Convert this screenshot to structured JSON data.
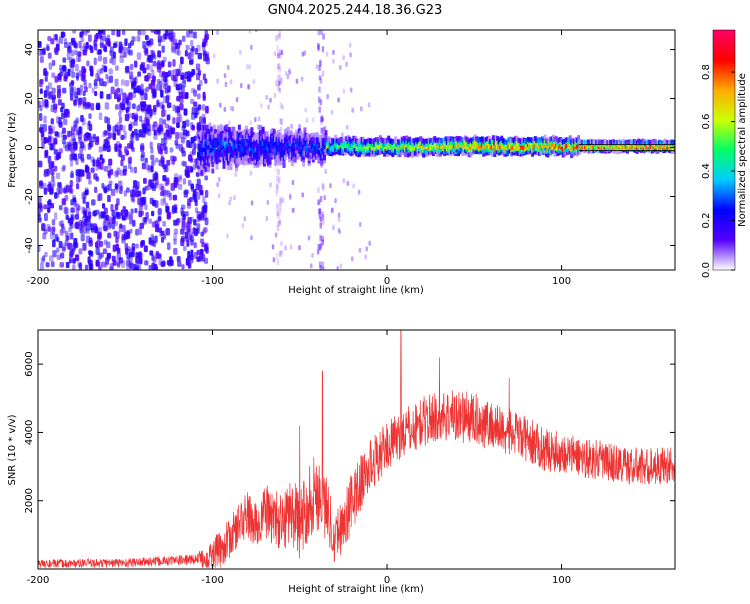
{
  "page": {
    "title": "GN04.2025.244.18.36.G23"
  },
  "chart_data": [
    {
      "type": "heatmap",
      "xlabel": "Height of straight line (km)",
      "ylabel": "Frequency (Hz)",
      "xlim": [
        -200,
        165
      ],
      "ylim": [
        -50,
        48
      ],
      "xticks": [
        -200,
        -100,
        0,
        100
      ],
      "xticklabels": [
        "-200",
        "-100",
        "0",
        "100"
      ],
      "yticks": [
        -40,
        -20,
        0,
        20,
        40
      ],
      "yticklabels": [
        "-40",
        "-20",
        "0",
        "20",
        "40"
      ],
      "colorbar": {
        "label": "Normalized spectral amplitude",
        "range": [
          0,
          0.97
        ],
        "ticks": [
          0.0,
          0.2,
          0.4,
          0.6,
          0.8
        ],
        "ticklabels": [
          "0.0",
          "0.2",
          "0.4",
          "0.6",
          "0.8"
        ],
        "colormap": [
          "#ffffff",
          "#5500ff",
          "#0000ff",
          "#00ccff",
          "#00ff66",
          "#ccff00",
          "#ffaa00",
          "#ff0000",
          "#ff0066"
        ]
      },
      "regions": [
        {
          "x": [
            -200,
            -103
          ],
          "freq_center": 0,
          "freq_half_width": 48,
          "amplitude": 0.08,
          "description_type": "noise"
        },
        {
          "x": [
            -103,
            -35
          ],
          "freq_center": 0,
          "freq_half_width": 6,
          "amplitude": 0.35,
          "description_type": "signal"
        },
        {
          "x": [
            -35,
            165
          ],
          "freq_center": 0.5,
          "freq_half_width": 2,
          "amplitude": 0.85,
          "description_type": "signal"
        }
      ],
      "grid": false
    },
    {
      "type": "line",
      "xlabel": "Height of straight line (km)",
      "ylabel": "SNR (10 * v/v)",
      "xlim": [
        -200,
        165
      ],
      "ylim": [
        0,
        7000
      ],
      "xticks": [
        -200,
        -100,
        0,
        100
      ],
      "xticklabels": [
        "-200",
        "-100",
        "0",
        "100"
      ],
      "yticks": [
        2000,
        4000,
        6000
      ],
      "yticklabels": [
        "2000",
        "4000",
        "6000"
      ],
      "color": "#ee3333",
      "envelope": {
        "x": [
          -200,
          -150,
          -120,
          -105,
          -100,
          -95,
          -90,
          -85,
          -80,
          -75,
          -70,
          -65,
          -60,
          -55,
          -50,
          -45,
          -40,
          -35,
          -30,
          -25,
          -20,
          -15,
          -10,
          -5,
          0,
          5,
          10,
          15,
          20,
          25,
          30,
          40,
          50,
          60,
          70,
          80,
          90,
          100,
          110,
          120,
          130,
          140,
          150,
          160,
          165
        ],
        "y": [
          150,
          180,
          250,
          300,
          400,
          600,
          900,
          1300,
          1600,
          1200,
          1700,
          1500,
          1300,
          1800,
          1200,
          2000,
          2300,
          1800,
          1000,
          1300,
          2000,
          2500,
          3000,
          3300,
          3600,
          3800,
          4000,
          4100,
          4300,
          4400,
          4500,
          4500,
          4400,
          4200,
          4000,
          3800,
          3500,
          3400,
          3300,
          3200,
          3100,
          3000,
          3000,
          3050,
          3000
        ]
      },
      "noise_amplitude": {
        "x": [
          -200,
          -110,
          -100,
          -60,
          -40,
          -30,
          -20,
          0,
          40,
          100,
          165
        ],
        "y": [
          120,
          150,
          500,
          900,
          1200,
          800,
          900,
          700,
          800,
          600,
          550
        ]
      },
      "spikes": [
        {
          "x": -37,
          "y": 5800
        },
        {
          "x": -50,
          "y": 4200
        },
        {
          "x": 8,
          "y": 7000
        },
        {
          "x": 30,
          "y": 6200
        },
        {
          "x": 70,
          "y": 5600
        }
      ],
      "grid": false
    }
  ]
}
